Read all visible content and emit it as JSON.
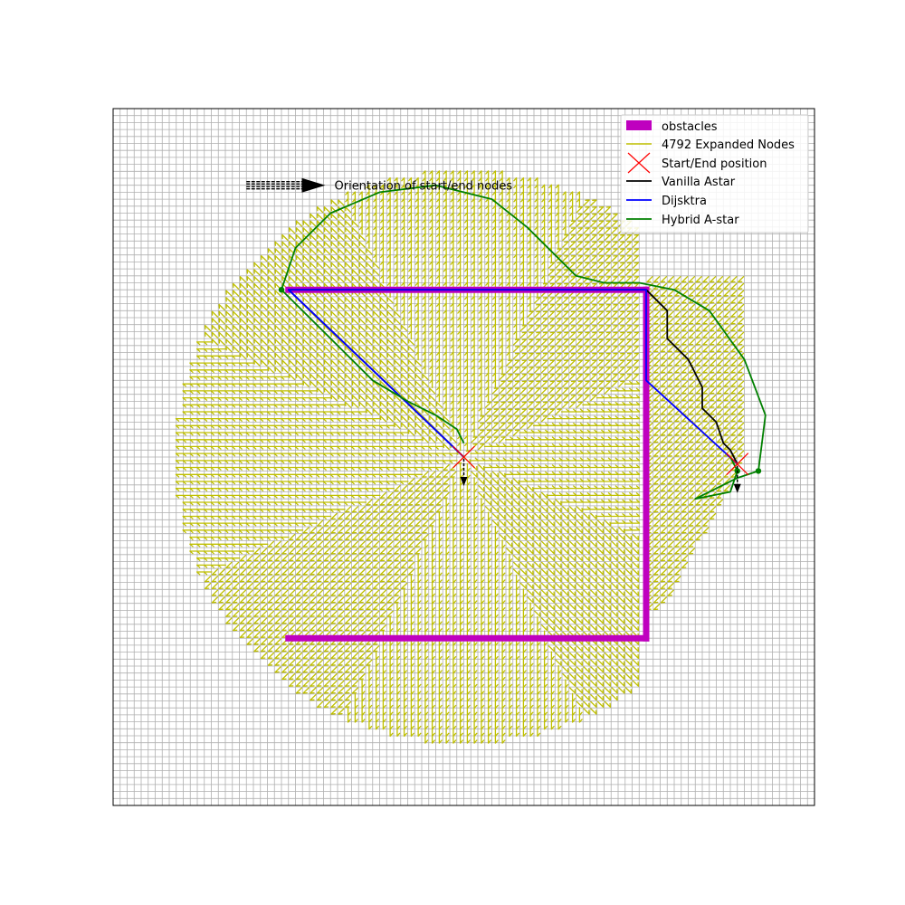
{
  "chart_data": {
    "type": "line",
    "title": "",
    "xlabel": "",
    "ylabel": "",
    "xlim": [
      0,
      100
    ],
    "ylim": [
      0,
      100
    ],
    "grid": true,
    "grid_step": 1,
    "legend_placement": "top-right",
    "colors": {
      "obstacles": "#bf00bf",
      "expanded": "#bfbf00",
      "start_end": "#ff0000",
      "vanilla": "#000000",
      "dijkstra": "#0000ff",
      "hybrid": "#008000",
      "grid": "#b0b0b0"
    },
    "legend": [
      {
        "key": "obstacles",
        "label": "obstacles"
      },
      {
        "key": "expanded",
        "label": "4792 Expanded Nodes"
      },
      {
        "key": "start_end",
        "label": "Start/End position"
      },
      {
        "key": "vanilla",
        "label": "Vanilla Astar"
      },
      {
        "key": "dijkstra",
        "label": "Dijsktra"
      },
      {
        "key": "hybrid",
        "label": "Hybrid A-star"
      }
    ],
    "annotation": {
      "text": "Orientation of start/end nodes",
      "arrow_from": [
        19,
        89
      ],
      "arrow_to": [
        30,
        89
      ]
    },
    "obstacles": [
      {
        "from": [
          25,
          74
        ],
        "to": [
          76,
          74
        ]
      },
      {
        "from": [
          76,
          74
        ],
        "to": [
          76,
          24
        ]
      },
      {
        "from": [
          25,
          24
        ],
        "to": [
          76,
          24
        ]
      }
    ],
    "expanded_region": {
      "center": [
        50,
        50
      ],
      "radius": 41,
      "east_lobe_x": [
        76,
        90
      ]
    },
    "start": [
      50,
      50
    ],
    "end": [
      89,
      49
    ],
    "series": [
      {
        "name": "Vanilla Astar",
        "key": "vanilla",
        "points": [
          [
            50,
            50
          ],
          [
            25,
            74
          ],
          [
            76,
            74
          ],
          [
            79,
            71
          ],
          [
            79,
            67
          ],
          [
            82,
            64
          ],
          [
            83,
            62
          ],
          [
            84,
            60
          ],
          [
            84,
            57
          ],
          [
            86,
            55
          ],
          [
            87,
            52
          ],
          [
            88,
            51
          ],
          [
            89,
            49
          ]
        ]
      },
      {
        "name": "Dijsktra",
        "key": "dijkstra",
        "points": [
          [
            50,
            50
          ],
          [
            25,
            74
          ],
          [
            76,
            74
          ],
          [
            76,
            61
          ],
          [
            89,
            49
          ]
        ]
      },
      {
        "name": "Hybrid A-star",
        "key": "hybrid",
        "points": [
          [
            50,
            52
          ],
          [
            49,
            54
          ],
          [
            46,
            56
          ],
          [
            42,
            58
          ],
          [
            37,
            61
          ],
          [
            33,
            65
          ],
          [
            29,
            69
          ],
          [
            26,
            72
          ],
          [
            24,
            74
          ],
          [
            26,
            80
          ],
          [
            31,
            85
          ],
          [
            38,
            88
          ],
          [
            46,
            89
          ],
          [
            54,
            87
          ],
          [
            59,
            83
          ],
          [
            63,
            79
          ],
          [
            66,
            76
          ],
          [
            70,
            75
          ],
          [
            75,
            75
          ],
          [
            80,
            74
          ],
          [
            85,
            71
          ],
          [
            90,
            64
          ],
          [
            93,
            56
          ],
          [
            92,
            48
          ],
          [
            89,
            47
          ],
          [
            83,
            44
          ],
          [
            88,
            45
          ],
          [
            89,
            48
          ],
          [
            88,
            50
          ]
        ]
      }
    ]
  }
}
